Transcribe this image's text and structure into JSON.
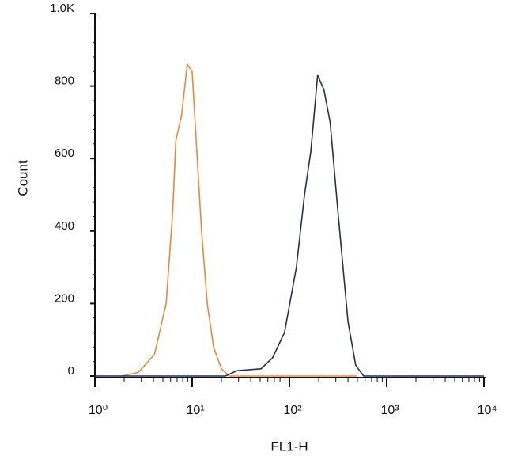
{
  "chart_data": {
    "type": "histogram-line",
    "xlabel": "FL1-H",
    "ylabel": "Count",
    "xscale": "log",
    "xlim": [
      1,
      10000
    ],
    "xticks": [
      {
        "value": 1,
        "label": "10⁰"
      },
      {
        "value": 10,
        "label": "10¹"
      },
      {
        "value": 100,
        "label": "10²"
      },
      {
        "value": 1000,
        "label": "10³"
      },
      {
        "value": 10000,
        "label": "10⁴"
      }
    ],
    "ylim": [
      0,
      1000
    ],
    "yticks": [
      0,
      200,
      400,
      600,
      800,
      {
        "value": 1000,
        "label": "1.0K"
      }
    ],
    "series": [
      {
        "color": "#e8883a",
        "x": [
          1.9,
          2.8,
          4.1,
          5.4,
          6.3,
          6.8,
          7.8,
          8.9,
          10,
          11,
          12.5,
          14.3,
          16.6,
          20,
          24,
          500
        ],
        "values": [
          0,
          10,
          60,
          200,
          450,
          650,
          720,
          860,
          840,
          650,
          400,
          200,
          80,
          20,
          0,
          0
        ]
      },
      {
        "color": "#1f2f55",
        "x": [
          1,
          22,
          29,
          51,
          67,
          89,
          118,
          143,
          166,
          195,
          226,
          262,
          316,
          400,
          480,
          580,
          10000
        ],
        "values": [
          0,
          0,
          15,
          20,
          50,
          120,
          300,
          500,
          620,
          830,
          790,
          700,
          450,
          150,
          30,
          0,
          0
        ]
      }
    ]
  }
}
